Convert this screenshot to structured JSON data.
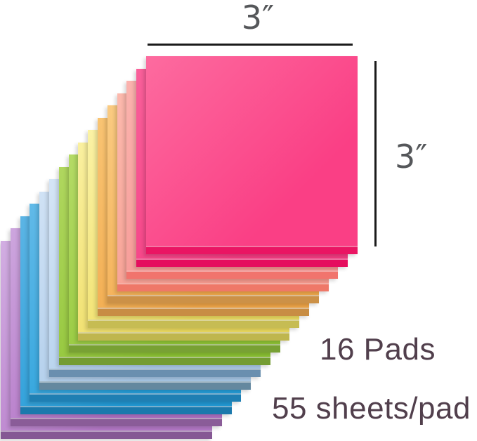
{
  "annotations": {
    "width_label": "3″",
    "height_label": "3″",
    "label_color": "#55575a",
    "line_color": "#1b1b1b"
  },
  "info": {
    "pads_count": "16 Pads",
    "sheets_per_pad": "55 sheets/pad",
    "text_color": "#513f4c"
  },
  "stack": {
    "background": "#ffffff",
    "pads": [
      {
        "name": "neon-pink-pad-1",
        "face_light": "#fd6b9f",
        "face": "#fa3f85",
        "edge": "#ea1563"
      },
      {
        "name": "neon-pink-pad-2",
        "face_light": "#f9609a",
        "face": "#f43c82",
        "edge": "#e50d5e"
      },
      {
        "name": "salmon-pad-1",
        "face_light": "#fbb3ae",
        "face": "#f59490",
        "edge": "#f1746d"
      },
      {
        "name": "salmon-pad-2",
        "face_light": "#fcb9ad",
        "face": "#f69a8e",
        "edge": "#ef7868"
      },
      {
        "name": "orange-pad-1",
        "face_light": "#facb82",
        "face": "#f2a94b",
        "edge": "#cc9147"
      },
      {
        "name": "orange-pad-2",
        "face_light": "#f9c473",
        "face": "#f0a647",
        "edge": "#c88d44"
      },
      {
        "name": "yellow-pad-1",
        "face_light": "#fbf2a5",
        "face": "#efde62",
        "edge": "#c6bc53"
      },
      {
        "name": "yellow-pad-2",
        "face_light": "#faf0a0",
        "face": "#eddb5e",
        "edge": "#bfb64e"
      },
      {
        "name": "green-pad-1",
        "face_light": "#b5db66",
        "face": "#8fc636",
        "edge": "#78a134"
      },
      {
        "name": "green-pad-2",
        "face_light": "#b0d75f",
        "face": "#8cc233",
        "edge": "#749c32"
      },
      {
        "name": "pale-blue-pad-1",
        "face_light": "#d5e5f6",
        "face": "#aecdeb",
        "edge": "#6a8faf"
      },
      {
        "name": "pale-blue-pad-2",
        "face_light": "#d0e2f5",
        "face": "#a9c9e9",
        "edge": "#64889f"
      },
      {
        "name": "azure-blue-pad-1",
        "face_light": "#62bae8",
        "face": "#259fda",
        "edge": "#1f7fb3"
      },
      {
        "name": "azure-blue-pad-2",
        "face_light": "#5cb5e5",
        "face": "#219ad6",
        "edge": "#1b79ac"
      },
      {
        "name": "purple-pad-1",
        "face_light": "#cda6de",
        "face": "#b272c5",
        "edge": "#8a5c98"
      },
      {
        "name": "lavender-pad-2",
        "face_light": "#d2aee2",
        "face": "#b67ac9",
        "edge": "#855894"
      }
    ]
  }
}
